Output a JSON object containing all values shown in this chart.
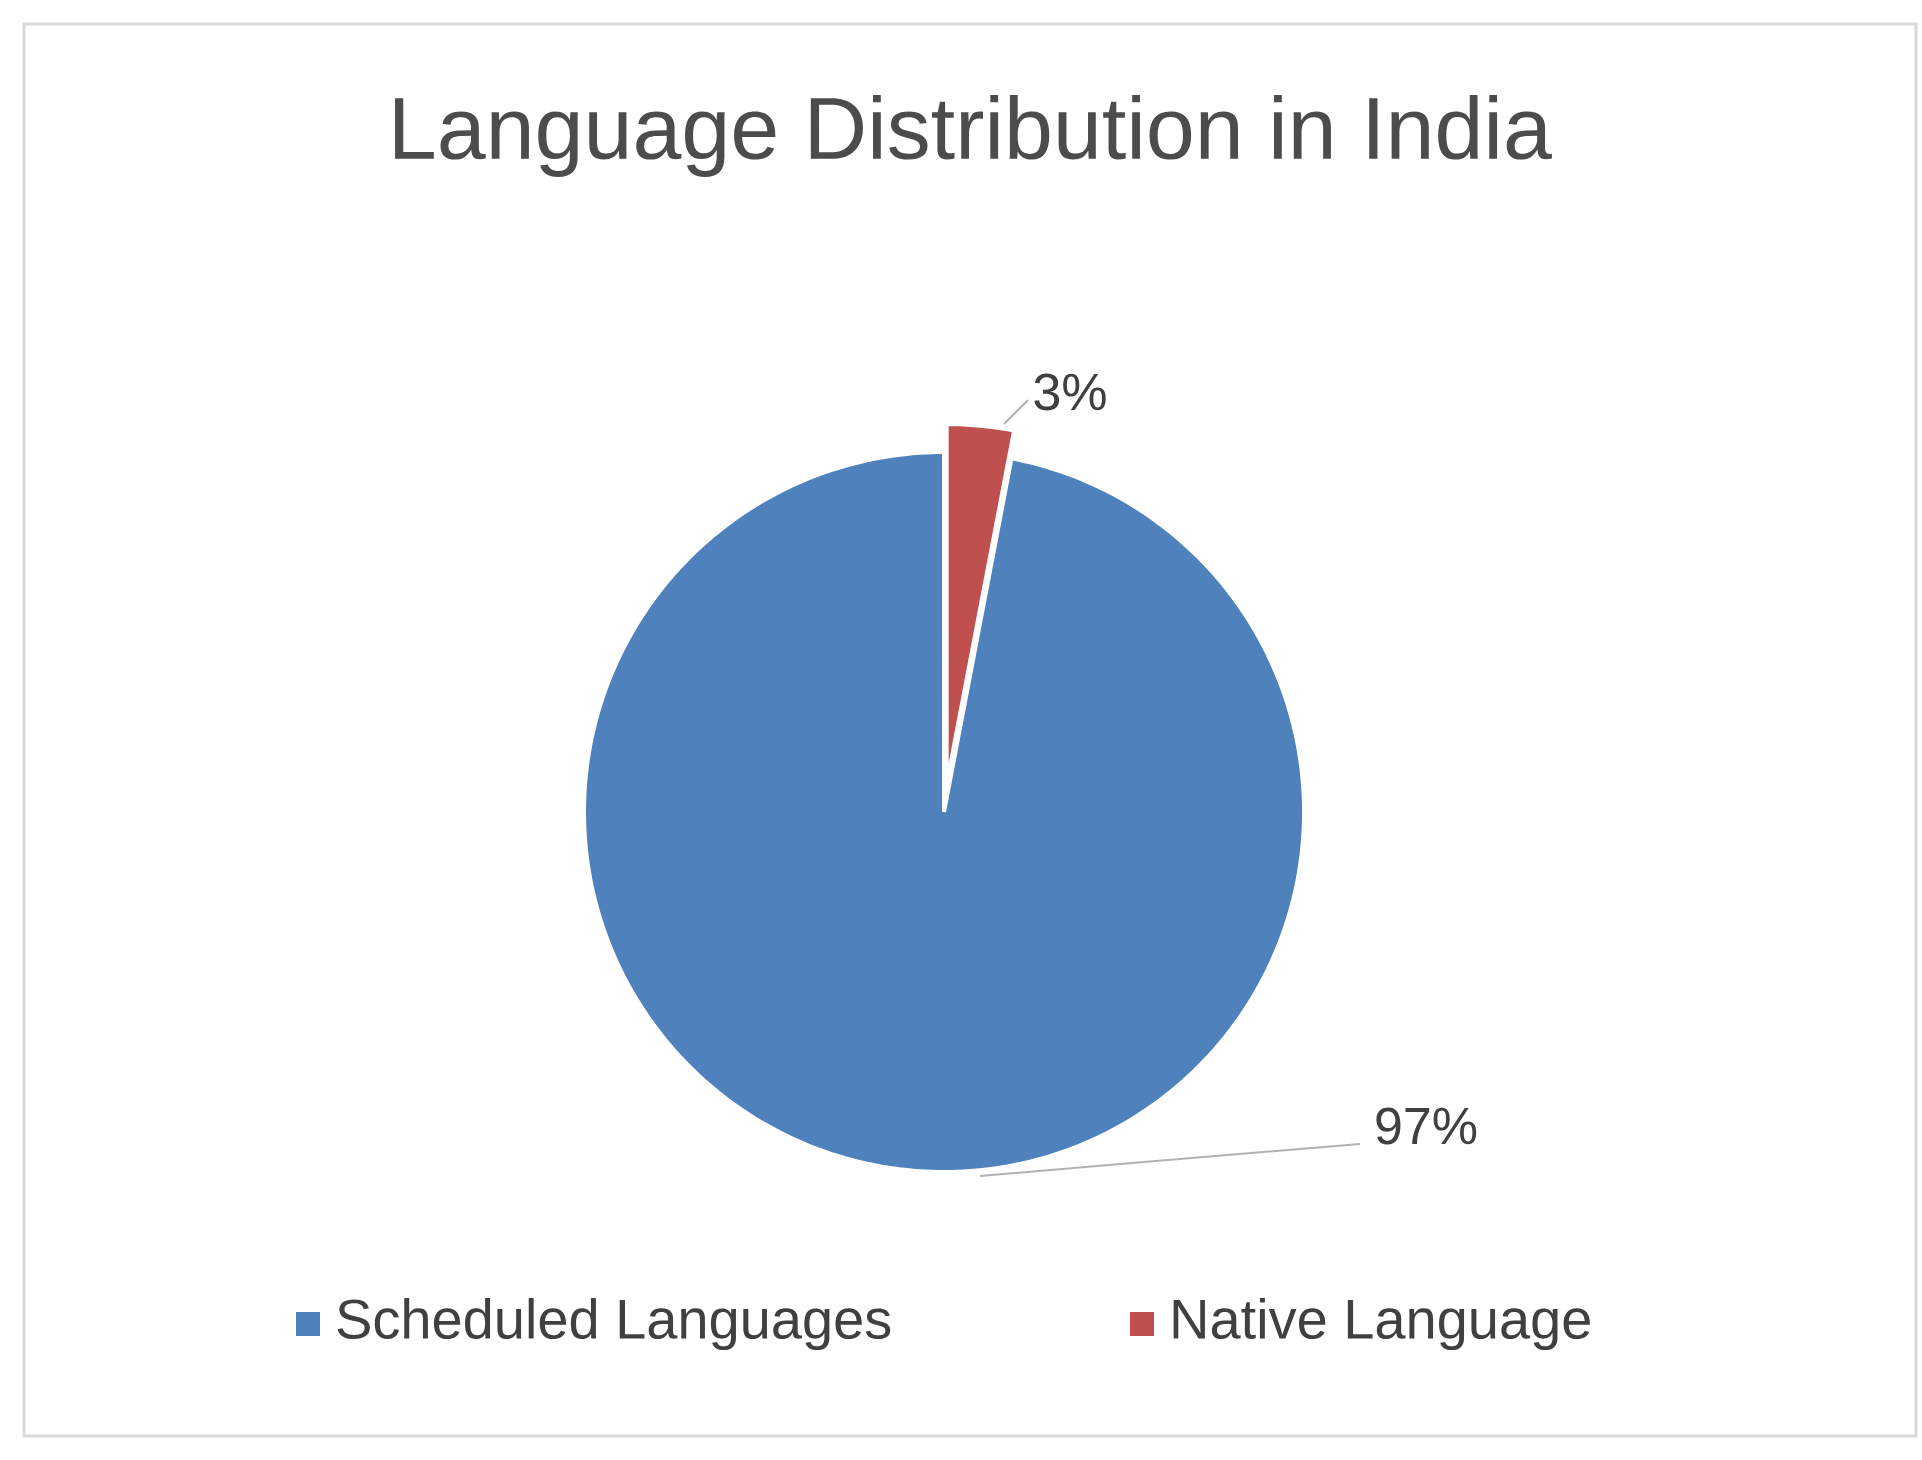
{
  "chart_data": {
    "type": "pie",
    "title": "Language Distribution in India",
    "categories": [
      "Scheduled Languages",
      "Native Language"
    ],
    "values": [
      97,
      3
    ],
    "colors": [
      "#4f81bd",
      "#c0504d"
    ],
    "value_labels": [
      "97%",
      "3%"
    ],
    "legend": "bottom"
  }
}
